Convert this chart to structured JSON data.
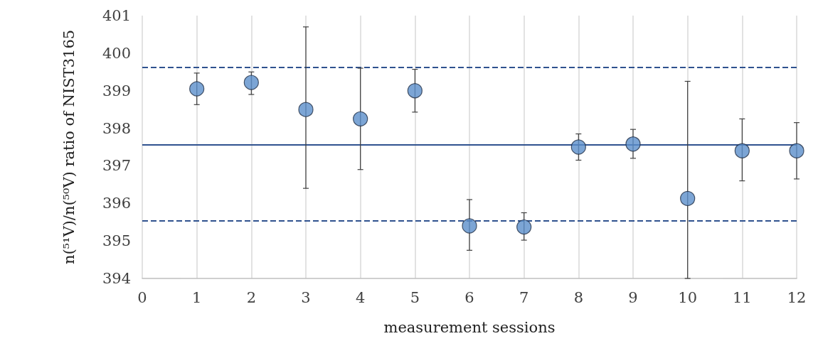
{
  "chart_data": {
    "type": "scatter",
    "xlabel": "measurement sessions",
    "ylabel": "n(⁵¹V)/n(⁵⁰V) ratio of NIST3165",
    "x": [
      1,
      2,
      3,
      4,
      5,
      6,
      7,
      8,
      9,
      10,
      11,
      12
    ],
    "values": [
      399.05,
      399.22,
      398.5,
      398.25,
      399.0,
      395.4,
      395.37,
      397.5,
      397.58,
      396.13,
      397.4,
      397.4
    ],
    "errors": [
      [
        398.63,
        399.47
      ],
      [
        398.9,
        399.5
      ],
      [
        396.4,
        400.7
      ],
      [
        396.9,
        399.6
      ],
      [
        398.43,
        399.57
      ],
      [
        394.75,
        396.1
      ],
      [
        395.02,
        395.75
      ],
      [
        397.15,
        397.85
      ],
      [
        397.2,
        397.97
      ],
      [
        394.0,
        399.25
      ],
      [
        396.6,
        398.25
      ],
      [
        396.65,
        398.15
      ]
    ],
    "color": "#5b8fcb",
    "marker": "circle",
    "xlim": [
      0,
      12
    ],
    "xticks": [
      0,
      1,
      2,
      3,
      4,
      5,
      6,
      7,
      8,
      9,
      10,
      11,
      12
    ],
    "ylim": [
      394,
      401
    ],
    "yticks": [
      394,
      395,
      396,
      397,
      398,
      399,
      400,
      401
    ],
    "grid": "x",
    "ref_lines": [
      {
        "axis": "y",
        "value": 397.57,
        "color": "#2f528f",
        "line_style": "solid"
      },
      {
        "axis": "y",
        "value": 399.62,
        "color": "#2f528f",
        "line_style": "dashed"
      },
      {
        "axis": "y",
        "value": 395.53,
        "color": "#2f528f",
        "line_style": "dashed"
      }
    ]
  }
}
